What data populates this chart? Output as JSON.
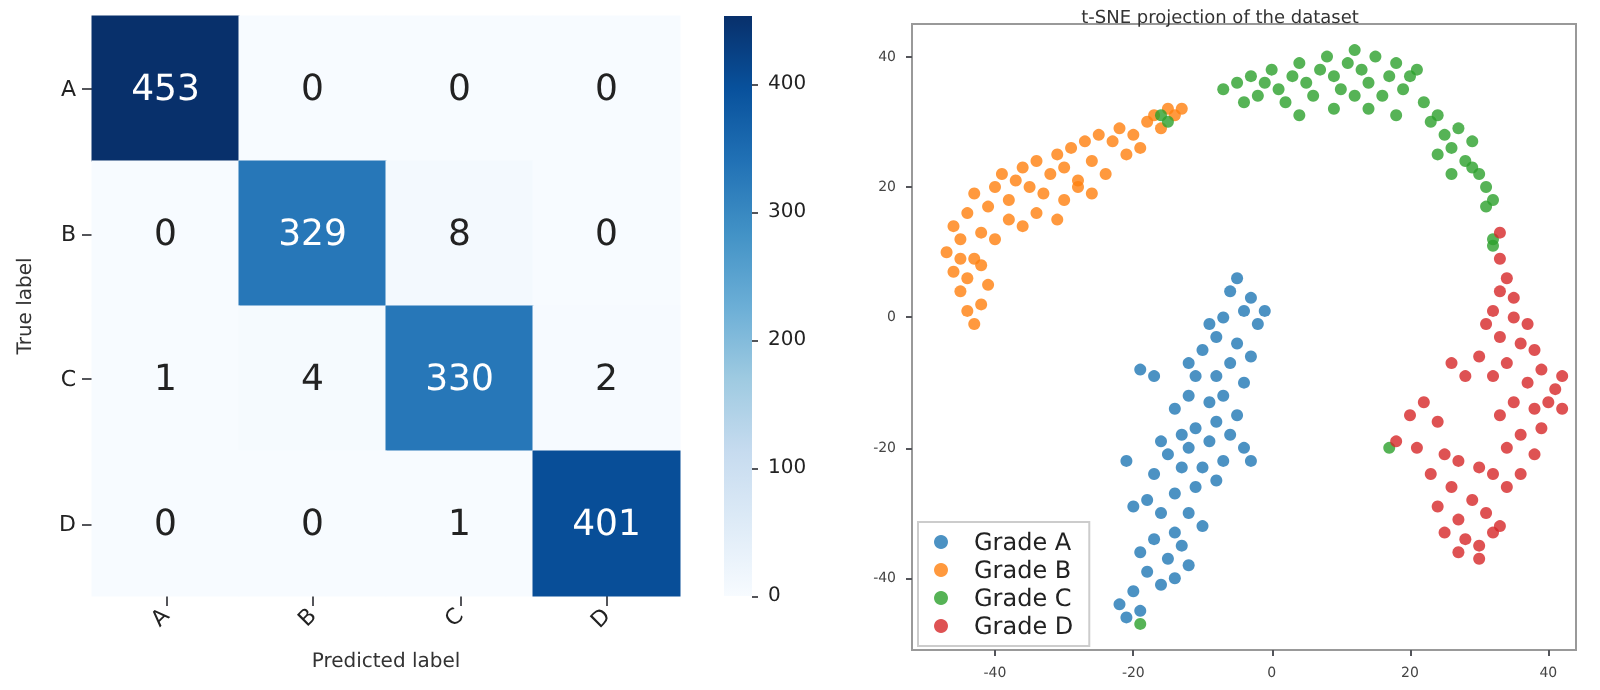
{
  "chart_data": [
    {
      "type": "heatmap",
      "xlabel": "Predicted label",
      "ylabel": "True label",
      "categories": [
        "A",
        "B",
        "C",
        "D"
      ],
      "y_categories": [
        "A",
        "B",
        "C",
        "D"
      ],
      "cells": [
        [
          453,
          0,
          0,
          0
        ],
        [
          0,
          329,
          8,
          0
        ],
        [
          1,
          4,
          330,
          2
        ],
        [
          0,
          0,
          1,
          401
        ]
      ],
      "clim": [
        0,
        453
      ],
      "cticks": [
        0,
        100,
        200,
        300,
        400
      ],
      "data_labels": true
    },
    {
      "type": "scatter",
      "title": "t-SNE projection of the dataset",
      "xlim": [
        -52,
        44
      ],
      "ylim": [
        -51,
        45
      ],
      "xticks": [
        -40,
        -20,
        0,
        20,
        40
      ],
      "yticks": [
        -40,
        -20,
        0,
        20,
        40
      ],
      "legend": "bottom left",
      "marker": "circle",
      "grid": false,
      "series": [
        {
          "name": "Grade A",
          "color": "#1f77b4",
          "x": [
            -5,
            -6,
            -3,
            -4,
            -1,
            -2,
            -7,
            -9,
            -8,
            -5,
            -3,
            -6,
            -10,
            -12,
            -11,
            -8,
            -4,
            -19,
            -17,
            -7,
            -9,
            -12,
            -14,
            -5,
            -8,
            -11,
            -13,
            -16,
            -15,
            -12,
            -9,
            -6,
            -4,
            -3,
            -7,
            -10,
            -13,
            -21,
            -17,
            -8,
            -11,
            -14,
            -18,
            -20,
            -16,
            -12,
            -10,
            -14,
            -17,
            -19,
            -13,
            -15,
            -12,
            -18,
            -16,
            -20,
            -14,
            -19,
            -21,
            -22
          ],
          "values": [
            6,
            4,
            3,
            1,
            1,
            -1,
            0,
            -1,
            -3,
            -4,
            -6,
            -7,
            -5,
            -7,
            -9,
            -9,
            -10,
            -8,
            -9,
            -12,
            -13,
            -12,
            -14,
            -15,
            -16,
            -17,
            -18,
            -19,
            -21,
            -20,
            -19,
            -18,
            -20,
            -22,
            -22,
            -23,
            -23,
            -22,
            -24,
            -25,
            -26,
            -27,
            -28,
            -29,
            -30,
            -30,
            -32,
            -33,
            -34,
            -36,
            -35,
            -37,
            -38,
            -39,
            -41,
            -42,
            -40,
            -45,
            -46,
            -44
          ]
        },
        {
          "name": "Grade B",
          "color": "#ff7f0e",
          "x": [
            -44,
            -43,
            -42,
            -45,
            -46,
            -44,
            -47,
            -45,
            -43,
            -46,
            -44,
            -42,
            -41,
            -43,
            -40,
            -38,
            -39,
            -37,
            -36,
            -35,
            -34,
            -33,
            -32,
            -31,
            -30,
            -29,
            -28,
            -27,
            -26,
            -25,
            -24,
            -23,
            -22,
            -21,
            -20,
            -19,
            -18,
            -17,
            -16,
            -15,
            -14,
            -13,
            -38,
            -36,
            -34,
            -40,
            -42,
            -41,
            -45,
            -30,
            -28,
            -31,
            -26
          ],
          "values": [
            1,
            -1,
            2,
            4,
            7,
            6,
            10,
            12,
            9,
            14,
            16,
            13,
            17,
            19,
            20,
            18,
            22,
            21,
            23,
            20,
            24,
            19,
            22,
            25,
            23,
            26,
            21,
            27,
            24,
            28,
            22,
            27,
            29,
            25,
            28,
            26,
            30,
            31,
            29,
            32,
            31,
            32,
            15,
            14,
            16,
            12,
            8,
            5,
            9,
            18,
            20,
            15,
            19
          ]
        },
        {
          "name": "Grade C",
          "color": "#2ca02c",
          "x": [
            -7,
            -5,
            -4,
            -3,
            -2,
            -1,
            0,
            1,
            2,
            3,
            4,
            5,
            6,
            7,
            8,
            9,
            10,
            11,
            12,
            13,
            14,
            15,
            16,
            17,
            18,
            19,
            20,
            21,
            22,
            23,
            24,
            25,
            26,
            27,
            28,
            29,
            30,
            31,
            32,
            31,
            29,
            26,
            24,
            18,
            14,
            9,
            4,
            12,
            -15,
            -16,
            32,
            32,
            -19,
            17
          ],
          "values": [
            35,
            36,
            33,
            37,
            34,
            36,
            38,
            35,
            33,
            37,
            39,
            36,
            34,
            38,
            40,
            37,
            35,
            39,
            41,
            38,
            36,
            40,
            34,
            37,
            39,
            35,
            37,
            38,
            33,
            30,
            31,
            28,
            26,
            29,
            24,
            27,
            22,
            20,
            18,
            17,
            23,
            22,
            25,
            31,
            32,
            32,
            31,
            34,
            30,
            31,
            12,
            11,
            -47,
            -20
          ]
        },
        {
          "name": "Grade D",
          "color": "#d62728",
          "x": [
            33,
            33,
            34,
            33,
            35,
            32,
            31,
            35,
            37,
            33,
            36,
            38,
            30,
            34,
            39,
            42,
            41,
            37,
            32,
            28,
            26,
            40,
            38,
            35,
            33,
            42,
            39,
            36,
            34,
            38,
            36,
            34,
            22,
            20,
            24,
            18,
            21,
            25,
            23,
            27,
            30,
            32,
            26,
            29,
            24,
            27,
            31,
            25,
            28,
            30,
            32,
            27,
            30,
            33
          ],
          "values": [
            13,
            9,
            6,
            4,
            3,
            1,
            -1,
            0,
            -1,
            -3,
            -4,
            -5,
            -6,
            -7,
            -8,
            -9,
            -11,
            -10,
            -9,
            -9,
            -7,
            -13,
            -14,
            -13,
            -15,
            -14,
            -17,
            -18,
            -20,
            -21,
            -24,
            -26,
            -13,
            -15,
            -16,
            -19,
            -20,
            -21,
            -24,
            -22,
            -23,
            -24,
            -26,
            -28,
            -29,
            -31,
            -30,
            -33,
            -34,
            -35,
            -33,
            -36,
            -37,
            -32
          ]
        }
      ]
    }
  ]
}
